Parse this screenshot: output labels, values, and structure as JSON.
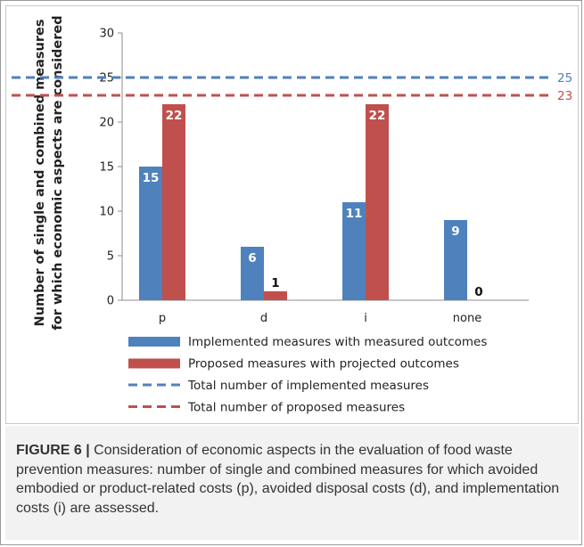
{
  "chart_data": {
    "type": "bar",
    "categories": [
      "p",
      "d",
      "i",
      "none"
    ],
    "series": [
      {
        "name": "Implemented measures with measured outcomes",
        "color": "#4f81bd",
        "values": [
          15,
          6,
          11,
          9
        ]
      },
      {
        "name": "Proposed measures with projected outcomes",
        "color": "#c0504d",
        "values": [
          22,
          1,
          22,
          0
        ]
      }
    ],
    "reference_lines": [
      {
        "name": "Total number of implemented measures",
        "value": 25,
        "label": "25",
        "color": "#4f81bd",
        "style": "dashed"
      },
      {
        "name": "Total number of proposed measures",
        "value": 23,
        "label": "23",
        "color": "#c0504d",
        "style": "dashed"
      }
    ],
    "ylabel_line1": "Number of single and combined measures",
    "ylabel_line2": "for which economic aspects are considered",
    "xlabel": "",
    "ylim": [
      0,
      30
    ],
    "yticks": [
      0,
      5,
      10,
      15,
      20,
      25,
      30
    ],
    "grid": false,
    "legend_position": "bottom"
  },
  "caption": {
    "label": "FIGURE 6 |",
    "text": " Consideration of economic aspects in the evaluation of food waste prevention measures: number of single and combined measures for which avoided embodied or product-related costs (p), avoided disposal costs (d), and implementation costs (i) are assessed."
  }
}
